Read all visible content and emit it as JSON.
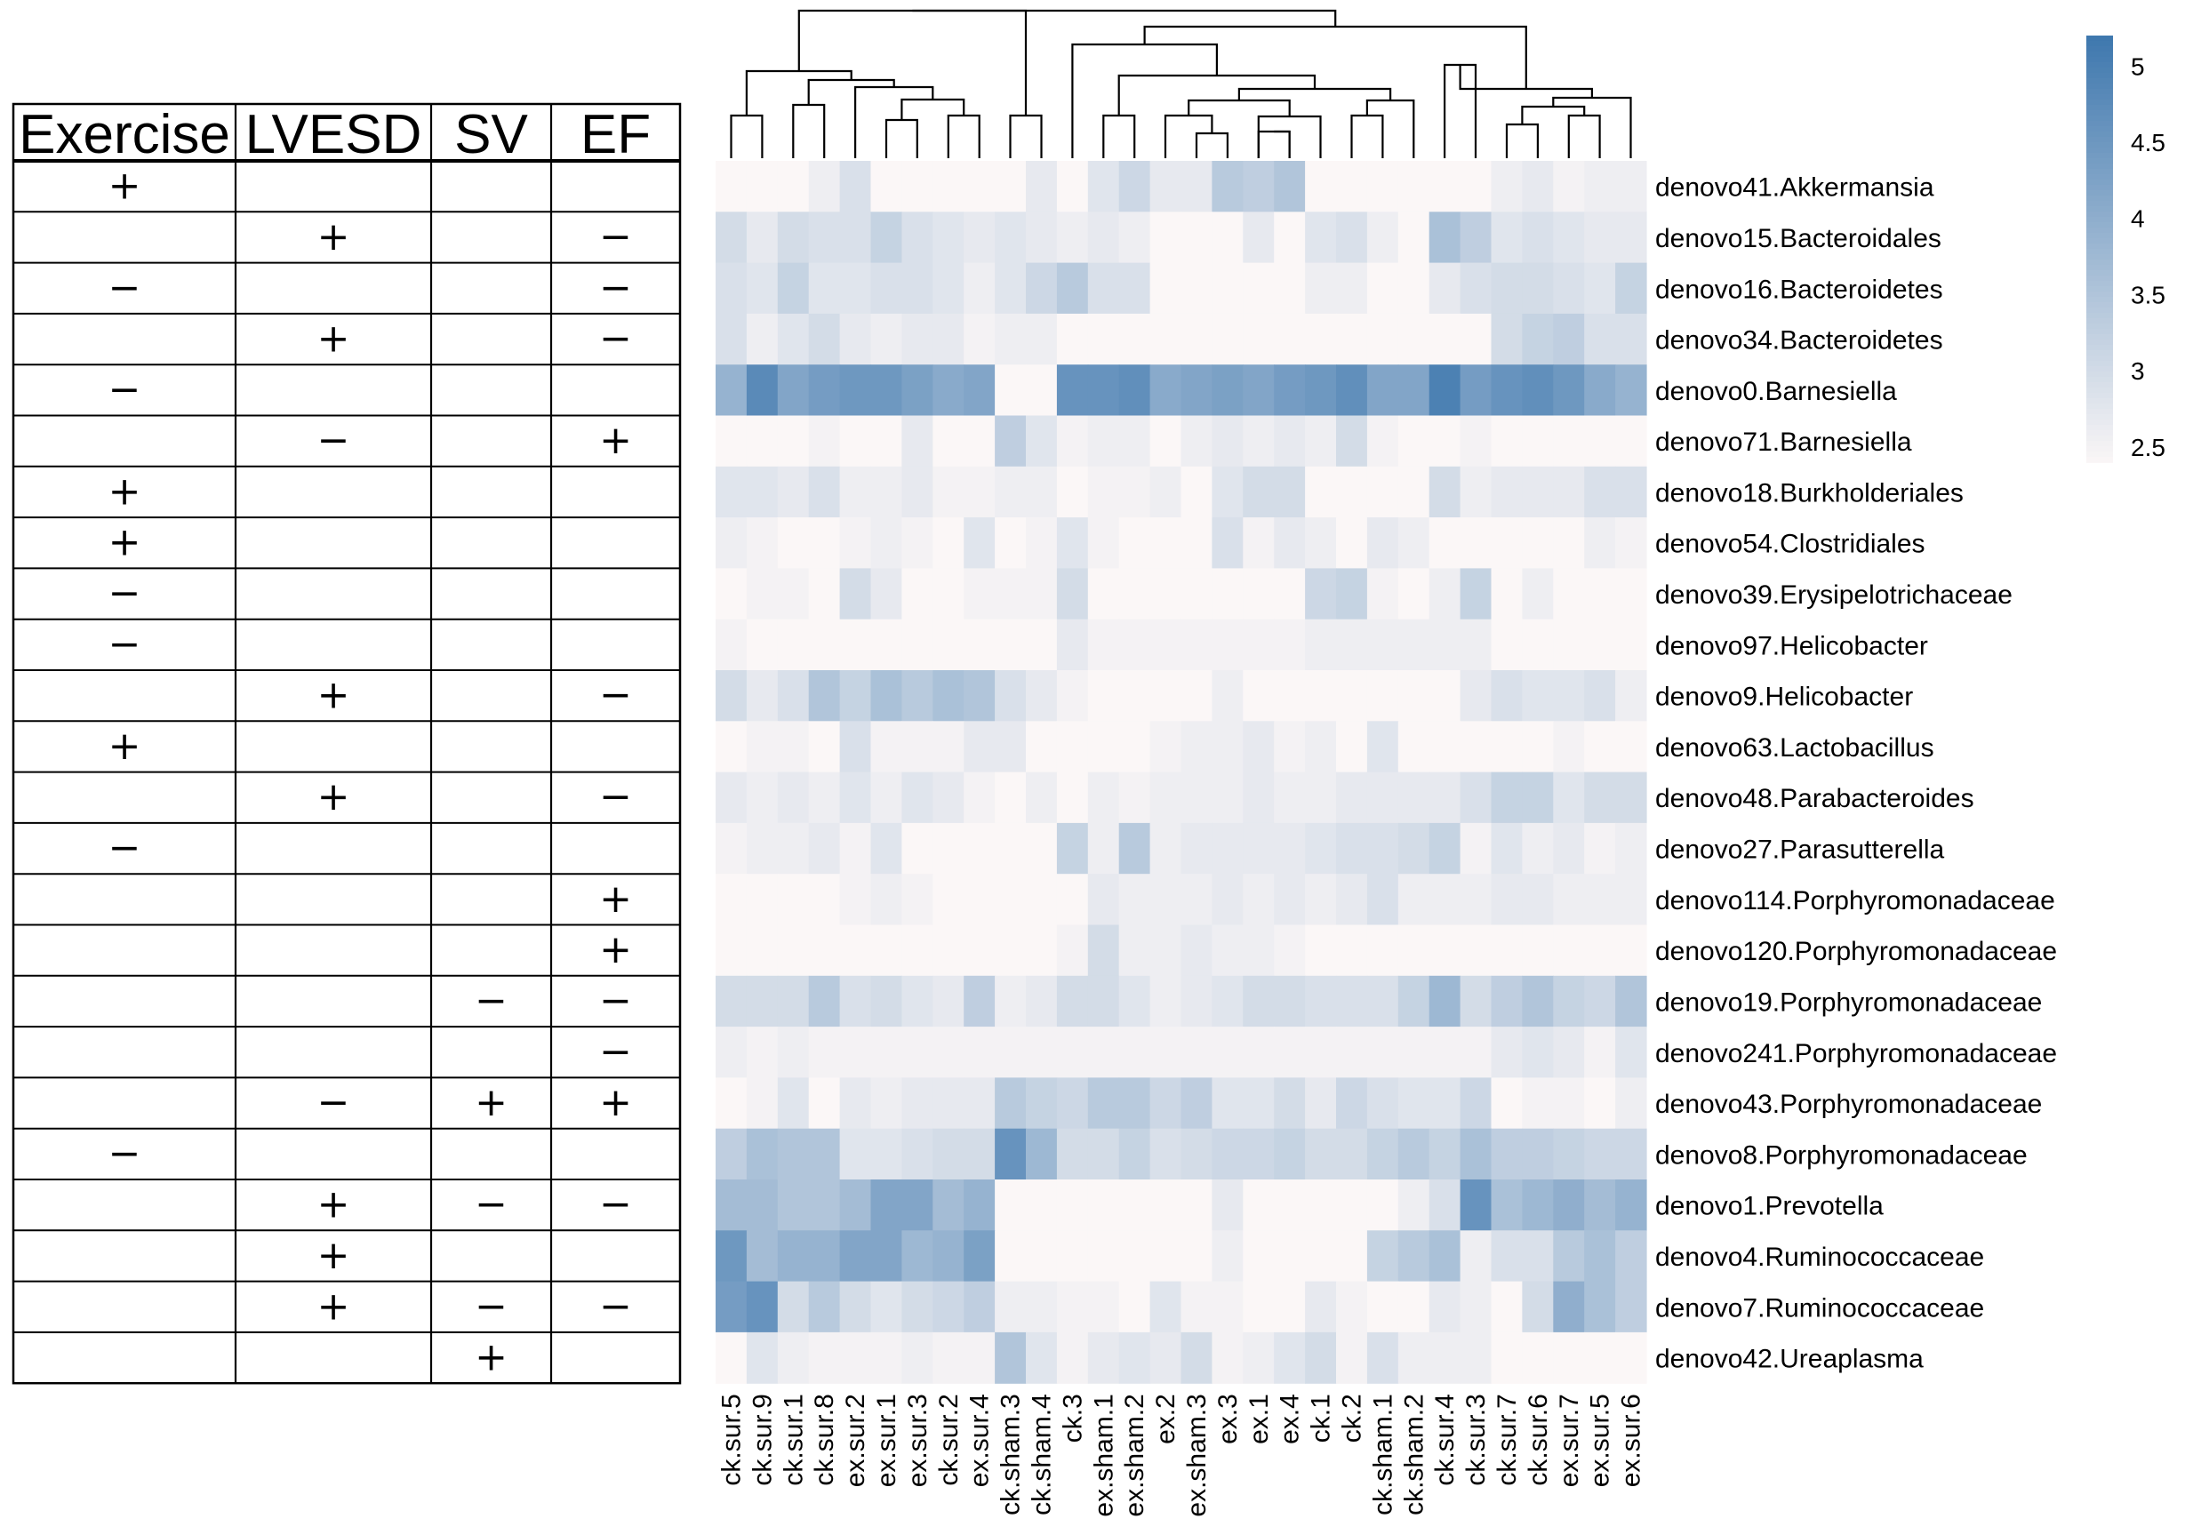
{
  "chart_data": {
    "type": "heatmap",
    "title": "",
    "table_headers": [
      "Exercise",
      "LVESD",
      "SV",
      "EF"
    ],
    "row_labels": [
      "denovo41.Akkermansia",
      "denovo15.Bacteroidales",
      "denovo16.Bacteroidetes",
      "denovo34.Bacteroidetes",
      "denovo0.Barnesiella",
      "denovo71.Barnesiella",
      "denovo18.Burkholderiales",
      "denovo54.Clostridiales",
      "denovo39.Erysipelotrichaceae",
      "denovo97.Helicobacter",
      "denovo9.Helicobacter",
      "denovo63.Lactobacillus",
      "denovo48.Parabacteroides",
      "denovo27.Parasutterella",
      "denovo114.Porphyromonadaceae",
      "denovo120.Porphyromonadaceae",
      "denovo19.Porphyromonadaceae",
      "denovo241.Porphyromonadaceae",
      "denovo43.Porphyromonadaceae",
      "denovo8.Porphyromonadaceae",
      "denovo1.Prevotella",
      "denovo4.Ruminococcaceae",
      "denovo7.Ruminococcaceae",
      "denovo42.Ureaplasma"
    ],
    "column_labels": [
      "ck.sur.5",
      "ck.sur.9",
      "ck.sur.1",
      "ck.sur.8",
      "ex.sur.2",
      "ex.sur.1",
      "ex.sur.3",
      "ck.sur.2",
      "ex.sur.4",
      "ck.sham.3",
      "ck.sham.4",
      "ck.3",
      "ex.sham.1",
      "ex.sham.2",
      "ex.2",
      "ex.sham.3",
      "ex.3",
      "ex.1",
      "ex.4",
      "ck.1",
      "ck.2",
      "ck.sham.1",
      "ck.sham.2",
      "ck.sur.4",
      "ck.sur.3",
      "ck.sur.7",
      "ck.sur.6",
      "ex.sur.7",
      "ex.sur.5",
      "ex.sur.6"
    ],
    "effects": [
      [
        "+",
        "",
        "",
        ""
      ],
      [
        "",
        "+",
        "",
        "−"
      ],
      [
        "−",
        "",
        "",
        "−"
      ],
      [
        "",
        "+",
        "",
        "−"
      ],
      [
        "−",
        "",
        "",
        ""
      ],
      [
        "",
        "−",
        "",
        "+"
      ],
      [
        "+",
        "",
        "",
        ""
      ],
      [
        "+",
        "",
        "",
        ""
      ],
      [
        "−",
        "",
        "",
        ""
      ],
      [
        "−",
        "",
        "",
        ""
      ],
      [
        "",
        "+",
        "",
        "−"
      ],
      [
        "+",
        "",
        "",
        ""
      ],
      [
        "",
        "+",
        "",
        "−"
      ],
      [
        "−",
        "",
        "",
        ""
      ],
      [
        "",
        "",
        "",
        "+"
      ],
      [
        "",
        "",
        "",
        "+"
      ],
      [
        "",
        "",
        "−",
        "−"
      ],
      [
        "",
        "",
        "",
        "−"
      ],
      [
        "",
        "−",
        "+",
        "+"
      ],
      [
        "−",
        "",
        "",
        ""
      ],
      [
        "",
        "+",
        "−",
        "−"
      ],
      [
        "",
        "+",
        "",
        ""
      ],
      [
        "",
        "+",
        "−",
        "−"
      ],
      [
        "",
        "",
        "+",
        ""
      ]
    ],
    "values": [
      [
        2.4,
        2.4,
        2.4,
        2.6,
        2.9,
        2.4,
        2.4,
        2.4,
        2.4,
        2.4,
        2.7,
        2.4,
        2.8,
        3.1,
        2.7,
        2.7,
        3.4,
        3.3,
        3.5,
        2.4,
        2.4,
        2.4,
        2.4,
        2.4,
        2.4,
        2.6,
        2.7,
        2.5,
        2.6,
        2.6
      ],
      [
        3.0,
        2.7,
        3.0,
        2.9,
        2.9,
        3.2,
        2.9,
        2.8,
        2.7,
        2.8,
        2.7,
        2.6,
        2.7,
        2.6,
        2.4,
        2.4,
        2.4,
        2.7,
        2.4,
        2.8,
        2.9,
        2.6,
        2.4,
        3.6,
        3.3,
        2.8,
        2.9,
        2.8,
        2.7,
        2.7
      ],
      [
        2.9,
        2.8,
        3.2,
        2.8,
        2.8,
        2.9,
        2.9,
        2.8,
        2.6,
        2.8,
        3.1,
        3.4,
        2.9,
        2.9,
        2.4,
        2.4,
        2.4,
        2.4,
        2.4,
        2.6,
        2.6,
        2.4,
        2.4,
        2.7,
        2.9,
        3.0,
        3.0,
        2.9,
        2.8,
        3.2
      ],
      [
        2.9,
        2.6,
        2.8,
        3.0,
        2.7,
        2.6,
        2.7,
        2.7,
        2.5,
        2.6,
        2.6,
        2.4,
        2.4,
        2.4,
        2.4,
        2.4,
        2.4,
        2.4,
        2.4,
        2.4,
        2.4,
        2.4,
        2.4,
        2.4,
        2.4,
        3.0,
        3.2,
        3.3,
        2.9,
        2.9
      ],
      [
        3.9,
        4.8,
        4.2,
        4.4,
        4.5,
        4.5,
        4.3,
        4.1,
        4.2,
        2.4,
        2.4,
        4.6,
        4.6,
        4.7,
        4.1,
        4.2,
        4.3,
        4.2,
        4.4,
        4.5,
        4.7,
        4.2,
        4.2,
        5.0,
        4.4,
        4.6,
        4.7,
        4.5,
        4.1,
        3.9
      ],
      [
        2.4,
        2.4,
        2.4,
        2.5,
        2.4,
        2.4,
        2.7,
        2.4,
        2.4,
        3.3,
        2.8,
        2.5,
        2.6,
        2.6,
        2.4,
        2.6,
        2.7,
        2.6,
        2.7,
        2.6,
        3.0,
        2.5,
        2.4,
        2.4,
        2.5,
        2.4,
        2.4,
        2.4,
        2.4,
        2.4
      ],
      [
        2.8,
        2.8,
        2.7,
        2.9,
        2.6,
        2.6,
        2.7,
        2.5,
        2.5,
        2.6,
        2.6,
        2.4,
        2.5,
        2.5,
        2.6,
        2.4,
        2.8,
        3.0,
        3.0,
        2.4,
        2.4,
        2.4,
        2.4,
        3.0,
        2.6,
        2.7,
        2.7,
        2.7,
        2.9,
        2.9
      ],
      [
        2.6,
        2.5,
        2.4,
        2.4,
        2.5,
        2.6,
        2.5,
        2.4,
        2.8,
        2.4,
        2.5,
        2.8,
        2.5,
        2.4,
        2.4,
        2.4,
        2.9,
        2.5,
        2.7,
        2.6,
        2.4,
        2.7,
        2.6,
        2.4,
        2.4,
        2.4,
        2.4,
        2.4,
        2.6,
        2.5
      ],
      [
        2.4,
        2.5,
        2.5,
        2.4,
        3.0,
        2.7,
        2.4,
        2.4,
        2.5,
        2.5,
        2.5,
        3.0,
        2.4,
        2.4,
        2.4,
        2.4,
        2.4,
        2.4,
        2.4,
        3.1,
        3.2,
        2.5,
        2.4,
        2.6,
        3.2,
        2.4,
        2.6,
        2.4,
        2.4,
        2.4
      ],
      [
        2.5,
        2.4,
        2.4,
        2.4,
        2.4,
        2.4,
        2.4,
        2.4,
        2.4,
        2.4,
        2.4,
        2.7,
        2.5,
        2.5,
        2.5,
        2.5,
        2.5,
        2.5,
        2.5,
        2.6,
        2.6,
        2.6,
        2.6,
        2.6,
        2.6,
        2.4,
        2.4,
        2.4,
        2.4,
        2.4
      ],
      [
        3.0,
        2.7,
        2.9,
        3.5,
        3.2,
        3.6,
        3.4,
        3.6,
        3.5,
        2.9,
        2.7,
        2.5,
        2.4,
        2.4,
        2.4,
        2.4,
        2.6,
        2.4,
        2.4,
        2.4,
        2.4,
        2.4,
        2.4,
        2.4,
        2.7,
        2.9,
        2.8,
        2.8,
        2.9,
        2.6
      ],
      [
        2.4,
        2.5,
        2.5,
        2.4,
        2.9,
        2.5,
        2.5,
        2.5,
        2.7,
        2.7,
        2.4,
        2.4,
        2.4,
        2.4,
        2.5,
        2.6,
        2.6,
        2.7,
        2.5,
        2.6,
        2.4,
        2.8,
        2.4,
        2.4,
        2.4,
        2.4,
        2.4,
        2.5,
        2.4,
        2.4
      ],
      [
        2.7,
        2.6,
        2.7,
        2.6,
        2.8,
        2.6,
        2.8,
        2.7,
        2.5,
        2.4,
        2.6,
        2.4,
        2.6,
        2.5,
        2.6,
        2.6,
        2.6,
        2.7,
        2.6,
        2.6,
        2.7,
        2.7,
        2.7,
        2.7,
        2.9,
        3.2,
        3.2,
        2.8,
        3.0,
        3.0
      ],
      [
        2.5,
        2.6,
        2.6,
        2.7,
        2.5,
        2.8,
        2.4,
        2.4,
        2.4,
        2.4,
        2.4,
        3.2,
        2.6,
        3.4,
        2.6,
        2.7,
        2.7,
        2.7,
        2.7,
        2.8,
        2.9,
        2.9,
        3.0,
        3.2,
        2.5,
        2.8,
        2.6,
        2.7,
        2.5,
        2.6
      ],
      [
        2.4,
        2.4,
        2.4,
        2.4,
        2.5,
        2.6,
        2.5,
        2.4,
        2.4,
        2.4,
        2.4,
        2.4,
        2.7,
        2.6,
        2.6,
        2.6,
        2.7,
        2.6,
        2.7,
        2.6,
        2.7,
        2.9,
        2.6,
        2.6,
        2.6,
        2.7,
        2.7,
        2.6,
        2.6,
        2.6
      ],
      [
        2.4,
        2.4,
        2.4,
        2.4,
        2.4,
        2.4,
        2.4,
        2.4,
        2.4,
        2.4,
        2.4,
        2.5,
        3.0,
        2.6,
        2.6,
        2.7,
        2.6,
        2.6,
        2.5,
        2.4,
        2.4,
        2.4,
        2.4,
        2.4,
        2.4,
        2.4,
        2.4,
        2.4,
        2.4,
        2.4
      ],
      [
        3.0,
        3.0,
        3.0,
        3.4,
        2.9,
        3.0,
        2.8,
        2.7,
        3.3,
        2.6,
        2.7,
        3.0,
        3.0,
        2.8,
        2.6,
        2.7,
        2.8,
        3.0,
        3.0,
        2.9,
        2.9,
        2.9,
        3.2,
        3.8,
        3.0,
        3.3,
        3.5,
        3.2,
        3.1,
        3.5
      ],
      [
        2.6,
        2.5,
        2.6,
        2.5,
        2.5,
        2.5,
        2.5,
        2.5,
        2.5,
        2.5,
        2.5,
        2.5,
        2.5,
        2.5,
        2.5,
        2.5,
        2.5,
        2.5,
        2.5,
        2.5,
        2.5,
        2.5,
        2.5,
        2.5,
        2.5,
        2.7,
        2.8,
        2.7,
        2.5,
        2.8
      ],
      [
        2.4,
        2.5,
        2.8,
        2.4,
        2.7,
        2.6,
        2.7,
        2.7,
        2.7,
        3.4,
        3.2,
        3.1,
        3.4,
        3.4,
        3.1,
        3.3,
        2.8,
        2.8,
        3.0,
        2.7,
        3.1,
        2.9,
        2.8,
        2.8,
        3.1,
        2.4,
        2.5,
        2.5,
        2.4,
        2.6
      ],
      [
        3.3,
        3.6,
        3.5,
        3.5,
        2.8,
        2.8,
        2.9,
        3.0,
        3.0,
        4.6,
        3.8,
        3.0,
        3.0,
        3.2,
        2.9,
        3.0,
        3.1,
        3.1,
        3.2,
        3.0,
        3.0,
        3.2,
        3.4,
        3.2,
        3.6,
        3.3,
        3.3,
        3.2,
        3.1,
        3.1
      ],
      [
        3.7,
        3.7,
        3.5,
        3.5,
        3.7,
        4.2,
        4.2,
        3.7,
        3.9,
        2.4,
        2.4,
        2.4,
        2.4,
        2.4,
        2.4,
        2.4,
        2.7,
        2.4,
        2.4,
        2.4,
        2.4,
        2.4,
        2.6,
        2.9,
        4.6,
        3.6,
        3.8,
        4.0,
        3.7,
        3.9
      ],
      [
        4.5,
        3.7,
        3.9,
        3.9,
        4.2,
        4.2,
        3.8,
        3.9,
        4.3,
        2.4,
        2.4,
        2.4,
        2.4,
        2.4,
        2.4,
        2.4,
        2.6,
        2.4,
        2.4,
        2.4,
        2.4,
        3.2,
        3.4,
        3.6,
        2.6,
        2.9,
        2.9,
        3.4,
        3.6,
        3.3
      ],
      [
        4.4,
        4.6,
        3.0,
        3.4,
        3.0,
        2.8,
        3.0,
        3.1,
        3.3,
        2.6,
        2.6,
        2.5,
        2.5,
        2.4,
        2.8,
        2.5,
        2.5,
        2.4,
        2.4,
        2.7,
        2.5,
        2.4,
        2.4,
        2.7,
        2.6,
        2.4,
        3.0,
        4.0,
        3.6,
        3.3
      ],
      [
        2.4,
        2.8,
        2.6,
        2.5,
        2.5,
        2.5,
        2.6,
        2.5,
        2.5,
        3.5,
        2.8,
        2.5,
        2.7,
        2.8,
        2.7,
        3.0,
        2.5,
        2.6,
        2.8,
        3.0,
        2.5,
        2.9,
        2.6,
        2.6,
        2.6,
        2.4,
        2.4,
        2.4,
        2.4,
        2.4
      ]
    ],
    "color_scale": {
      "min": 2.4,
      "max": 5.2,
      "low_color": "#fbf7f7",
      "high_color": "#3f78ae"
    },
    "legend_ticks": [
      "5",
      "4.5",
      "4",
      "3.5",
      "3",
      "2.5"
    ],
    "legend_tick_values": [
      5,
      4.5,
      4,
      3.5,
      3,
      2.5
    ],
    "legend_placement": "top-right",
    "dendrogram_leaf_order": "columns clustered (hierarchical) above heatmap"
  }
}
